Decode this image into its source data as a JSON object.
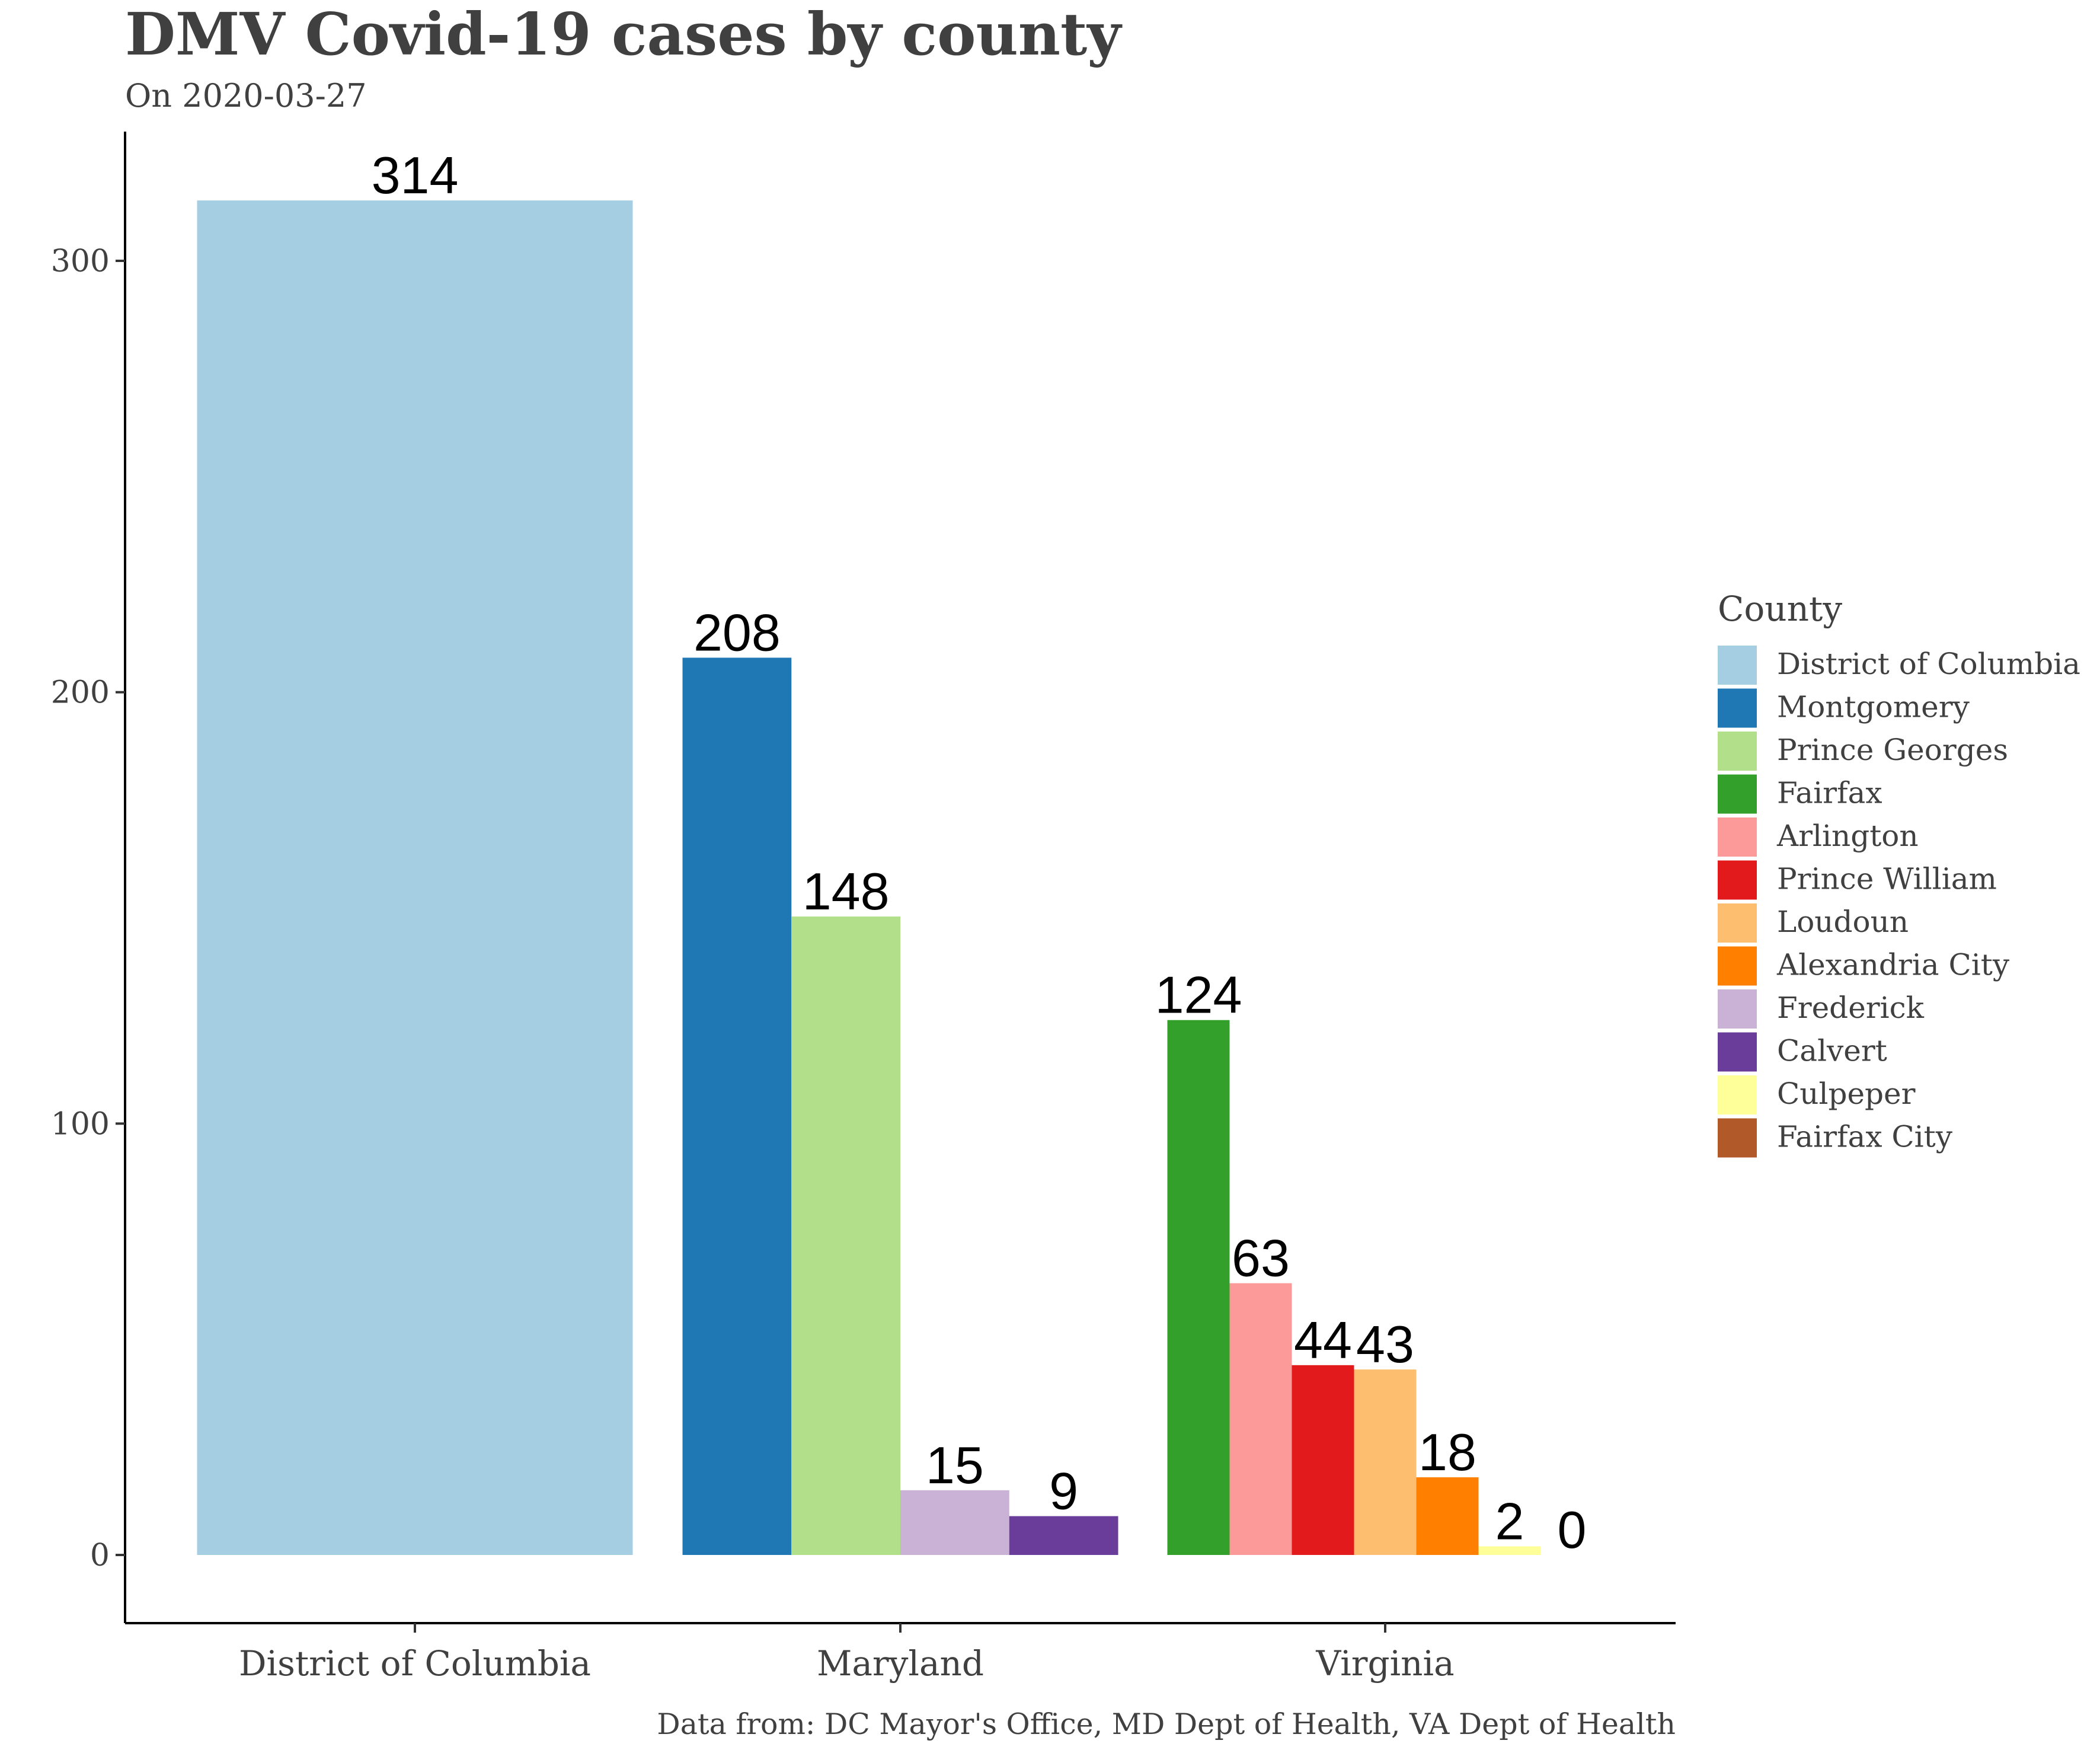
{
  "chart_data": {
    "type": "bar",
    "title": "DMV Covid-19 cases by county",
    "subtitle": "On 2020-03-27",
    "caption": "Data from: DC Mayor's Office, MD Dept of Health, VA Dept of Health",
    "xlabel": "",
    "ylabel": "",
    "ylim": [
      -15.6,
      329.6
    ],
    "yticks": [
      0,
      100,
      200,
      300
    ],
    "grid": false,
    "legend_position": "right",
    "legend_title": "County",
    "counties": [
      {
        "name": "District of Columbia",
        "color": "#a6cee3"
      },
      {
        "name": "Montgomery",
        "color": "#1f78b4"
      },
      {
        "name": "Prince Georges",
        "color": "#b2df8a"
      },
      {
        "name": "Fairfax",
        "color": "#33a02c"
      },
      {
        "name": "Arlington",
        "color": "#fb9a99"
      },
      {
        "name": "Prince William",
        "color": "#e31a1c"
      },
      {
        "name": "Loudoun",
        "color": "#fdbf6f"
      },
      {
        "name": "Alexandria City",
        "color": "#ff7f00"
      },
      {
        "name": "Frederick",
        "color": "#cab2d6"
      },
      {
        "name": "Calvert",
        "color": "#6a3d9a"
      },
      {
        "name": "Culpeper",
        "color": "#ffff99"
      },
      {
        "name": "Fairfax City",
        "color": "#b15928"
      }
    ],
    "groups": [
      {
        "state": "District of Columbia",
        "bars": [
          {
            "county": "District of Columbia",
            "value": 314
          }
        ]
      },
      {
        "state": "Maryland",
        "bars": [
          {
            "county": "Montgomery",
            "value": 208
          },
          {
            "county": "Prince Georges",
            "value": 148
          },
          {
            "county": "Frederick",
            "value": 15
          },
          {
            "county": "Calvert",
            "value": 9
          }
        ]
      },
      {
        "state": "Virginia",
        "bars": [
          {
            "county": "Fairfax",
            "value": 124
          },
          {
            "county": "Arlington",
            "value": 63
          },
          {
            "county": "Prince William",
            "value": 44
          },
          {
            "county": "Loudoun",
            "value": 43
          },
          {
            "county": "Alexandria City",
            "value": 18
          },
          {
            "county": "Culpeper",
            "value": 2
          },
          {
            "county": "Fairfax City",
            "value": 0
          }
        ]
      }
    ]
  }
}
